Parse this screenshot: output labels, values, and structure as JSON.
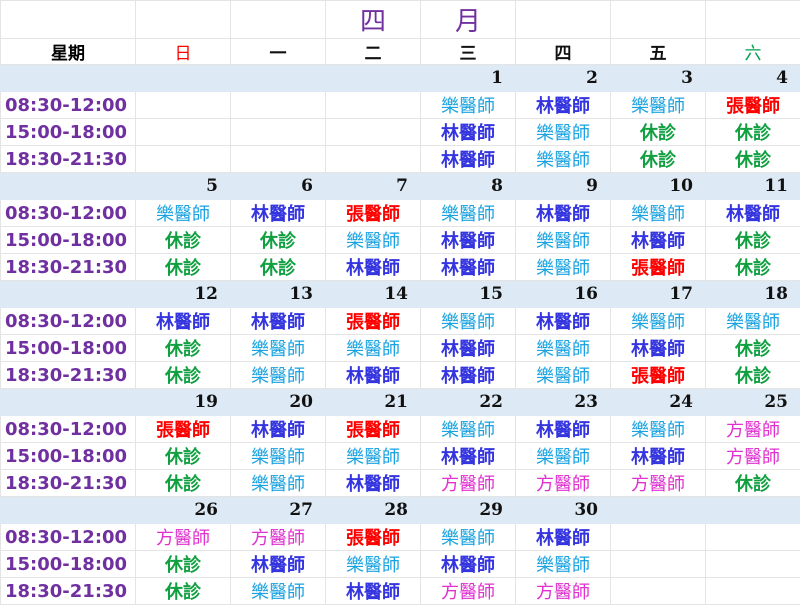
{
  "title": [
    "四",
    "月"
  ],
  "header": {
    "label": "星期",
    "days": [
      "日",
      "一",
      "二",
      "三",
      "四",
      "五",
      "六"
    ]
  },
  "colors": {
    "time": "#7030a0",
    "sunday": "#ff0000",
    "saturday": "#00a050",
    "weekday": "#111111",
    "date_bg": "#dde9f4",
    "樂醫師": "#1aa3e0",
    "林醫師": "#3535e0",
    "張醫師": "#ff0000",
    "方醫師": "#e030d0",
    "休診": "#10a040"
  },
  "times": [
    "08:30-12:00",
    "15:00-18:00",
    "18:30-21:30"
  ],
  "weeks": [
    {
      "dates": [
        "",
        "",
        "",
        "1",
        "2",
        "3",
        "4"
      ],
      "slots": [
        [
          "",
          "",
          "",
          "樂醫師",
          "林醫師",
          "樂醫師",
          "張醫師"
        ],
        [
          "",
          "",
          "",
          "林醫師",
          "樂醫師",
          "休診",
          "休診"
        ],
        [
          "",
          "",
          "",
          "林醫師",
          "樂醫師",
          "休診",
          "休診"
        ]
      ]
    },
    {
      "dates": [
        "5",
        "6",
        "7",
        "8",
        "9",
        "10",
        "11"
      ],
      "slots": [
        [
          "樂醫師",
          "林醫師",
          "張醫師",
          "樂醫師",
          "林醫師",
          "樂醫師",
          "林醫師"
        ],
        [
          "休診",
          "休診",
          "樂醫師",
          "林醫師",
          "樂醫師",
          "林醫師",
          "休診"
        ],
        [
          "休診",
          "休診",
          "林醫師",
          "林醫師",
          "樂醫師",
          "張醫師",
          "休診"
        ]
      ]
    },
    {
      "dates": [
        "12",
        "13",
        "14",
        "15",
        "16",
        "17",
        "18"
      ],
      "slots": [
        [
          "林醫師",
          "林醫師",
          "張醫師",
          "樂醫師",
          "林醫師",
          "樂醫師",
          "樂醫師"
        ],
        [
          "休診",
          "樂醫師",
          "樂醫師",
          "林醫師",
          "樂醫師",
          "林醫師",
          "休診"
        ],
        [
          "休診",
          "樂醫師",
          "林醫師",
          "林醫師",
          "樂醫師",
          "張醫師",
          "休診"
        ]
      ]
    },
    {
      "dates": [
        "19",
        "20",
        "21",
        "22",
        "23",
        "24",
        "25"
      ],
      "slots": [
        [
          "張醫師",
          "林醫師",
          "張醫師",
          "樂醫師",
          "林醫師",
          "樂醫師",
          "方醫師"
        ],
        [
          "休診",
          "樂醫師",
          "樂醫師",
          "林醫師",
          "樂醫師",
          "林醫師",
          "方醫師"
        ],
        [
          "休診",
          "樂醫師",
          "林醫師",
          "方醫師",
          "方醫師",
          "方醫師",
          "休診"
        ]
      ]
    },
    {
      "dates": [
        "26",
        "27",
        "28",
        "29",
        "30",
        "",
        ""
      ],
      "slots": [
        [
          "方醫師",
          "方醫師",
          "張醫師",
          "樂醫師",
          "林醫師",
          "",
          ""
        ],
        [
          "休診",
          "林醫師",
          "樂醫師",
          "林醫師",
          "樂醫師",
          "",
          ""
        ],
        [
          "休診",
          "樂醫師",
          "林醫師",
          "方醫師",
          "方醫師",
          "",
          ""
        ]
      ]
    }
  ]
}
